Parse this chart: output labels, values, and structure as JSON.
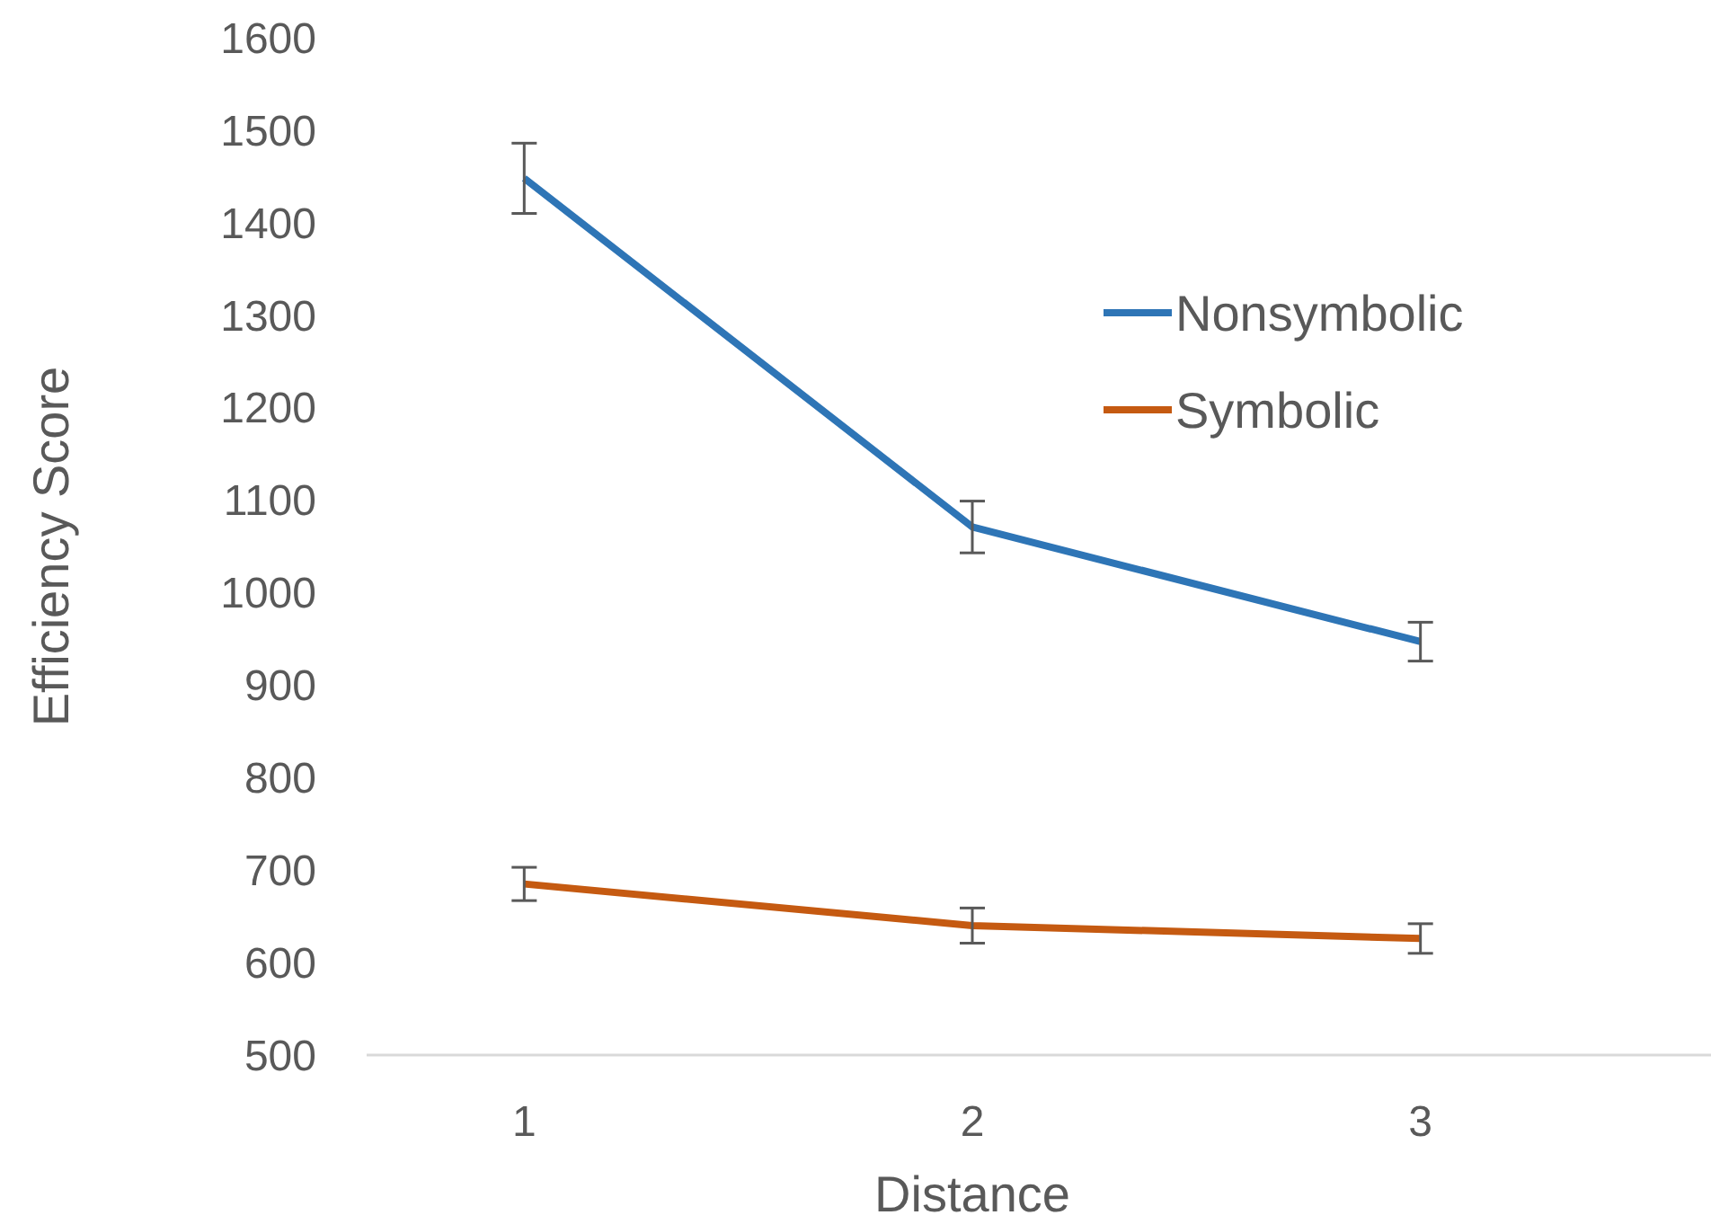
{
  "chart_data": {
    "type": "line",
    "xlabel": "Distance",
    "ylabel": "Efficiency Score",
    "categories": [
      "1",
      "2",
      "3"
    ],
    "series": [
      {
        "name": "Nonsymbolic",
        "color": "#2e75b6",
        "values": [
          1448,
          1071,
          947
        ],
        "errors": [
          38,
          28,
          21
        ]
      },
      {
        "name": "Symbolic",
        "color": "#c55a11",
        "values": [
          685,
          640,
          626
        ],
        "errors": [
          18,
          19,
          16
        ]
      }
    ],
    "ylim": [
      500,
      1600
    ],
    "yticks": [
      500,
      600,
      700,
      800,
      900,
      1000,
      1100,
      1200,
      1300,
      1400,
      1500,
      1600
    ],
    "grid": false,
    "legend": "right",
    "marker": "none",
    "line_style": "solid"
  }
}
